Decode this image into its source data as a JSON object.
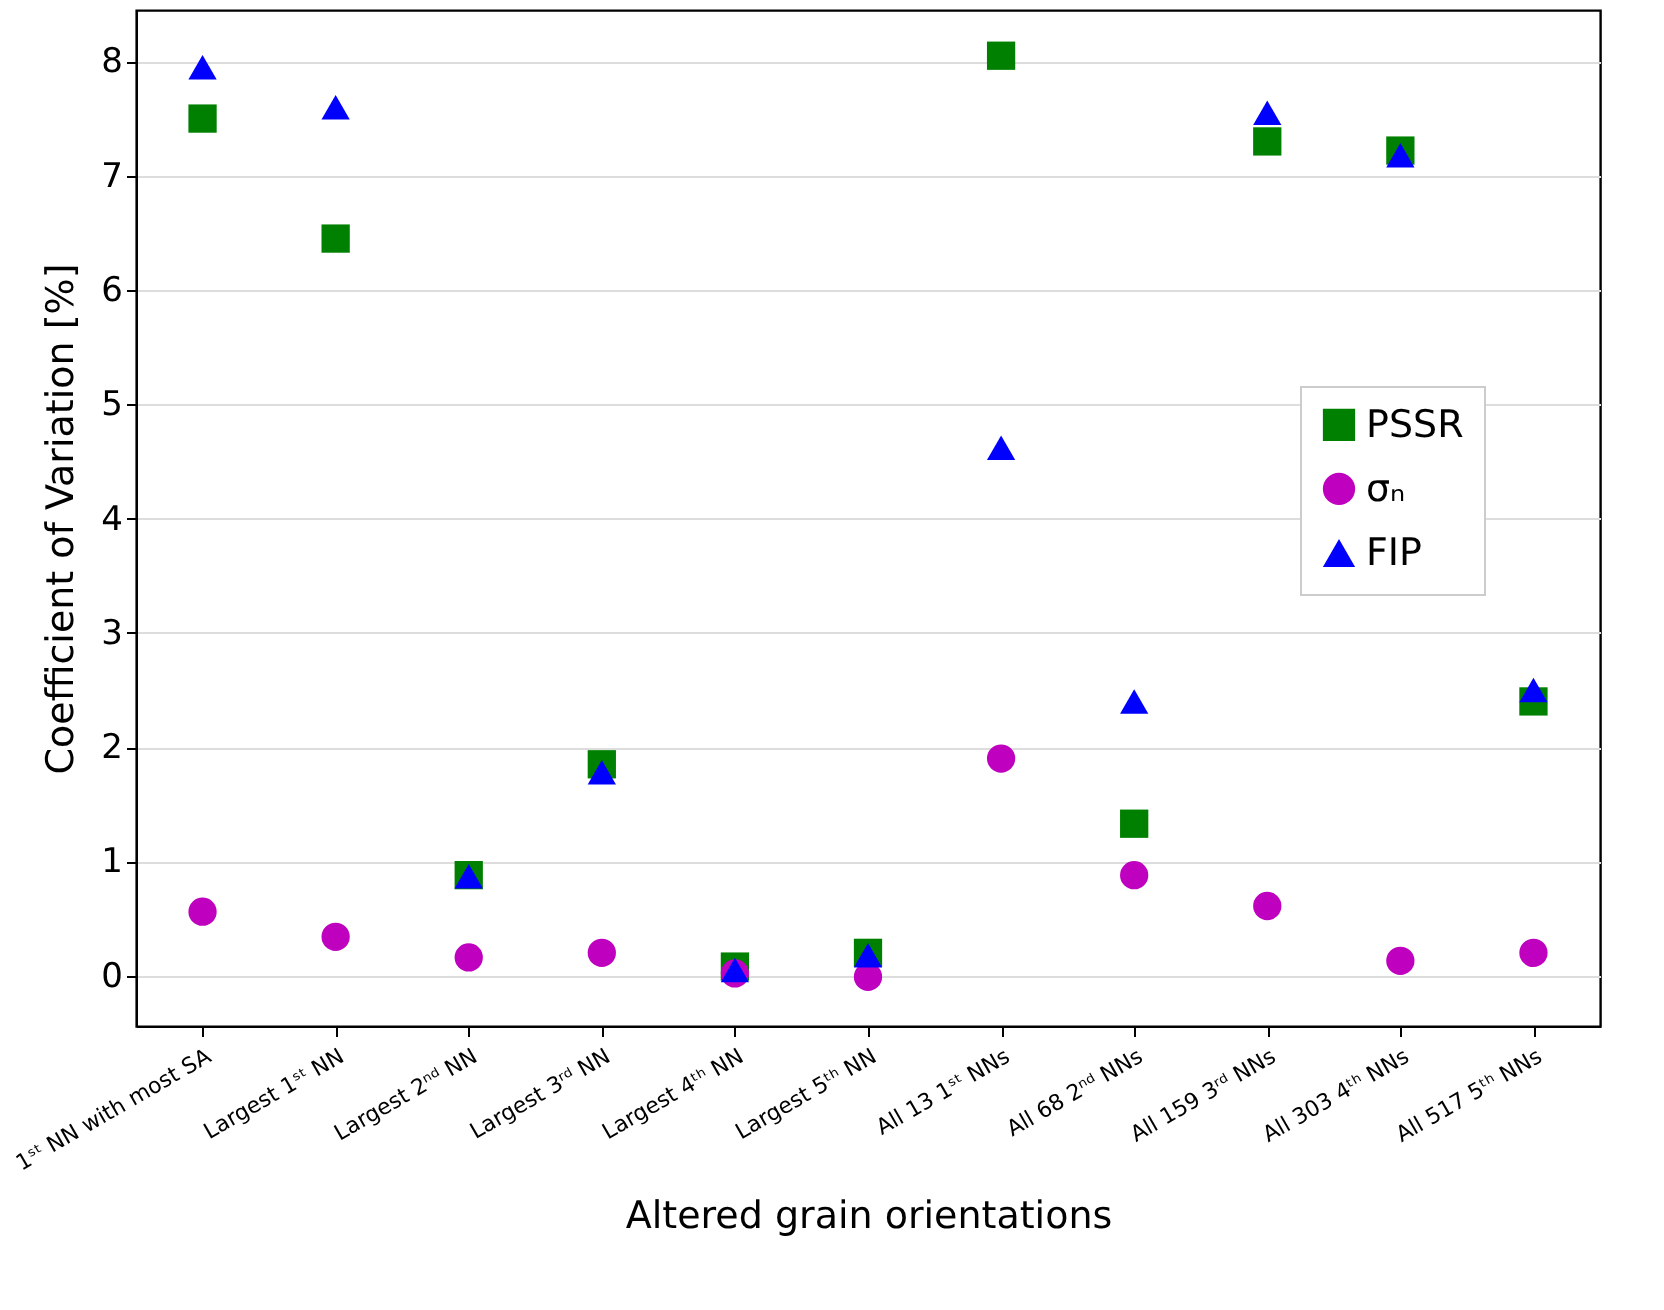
{
  "chart_data": {
    "type": "scatter",
    "xlabel": "Altered grain orientations",
    "ylabel": "Coefficient of Variation [%]",
    "categories": [
      "1ˢᵗ NN with most SA",
      "Largest 1ˢᵗ NN",
      "Largest 2ⁿᵈ NN",
      "Largest 3ʳᵈ NN",
      "Largest 4ᵗʰ NN",
      "Largest 5ᵗʰ NN",
      "All 13 1ˢᵗ NNs",
      "All 68 2ⁿᵈ NNs",
      "All 159 3ʳᵈ NNs",
      "All 303 4ᵗʰ NNs",
      "All 517 5ᵗʰ NNs"
    ],
    "series": [
      {
        "name": "PSSR",
        "color": "#008000",
        "marker": "square",
        "values": [
          7.5,
          6.45,
          0.88,
          1.85,
          0.08,
          0.2,
          8.05,
          1.33,
          7.3,
          7.22,
          2.4
        ]
      },
      {
        "name": "σₙ",
        "color": "#bf00bf",
        "marker": "circle",
        "values": [
          0.56,
          0.34,
          0.16,
          0.2,
          0.02,
          -0.01,
          1.9,
          0.88,
          0.61,
          0.13,
          0.2
        ]
      },
      {
        "name": "FIP",
        "color": "#0000ff",
        "marker": "triangle",
        "values": [
          7.95,
          7.6,
          0.87,
          1.78,
          0.05,
          0.18,
          4.62,
          2.4,
          7.55,
          7.18,
          2.5
        ]
      }
    ],
    "ylim": [
      -0.44,
      8.45
    ],
    "yticks": [
      0,
      1,
      2,
      3,
      4,
      5,
      6,
      7,
      8
    ],
    "grid": "y",
    "legend": "right"
  }
}
